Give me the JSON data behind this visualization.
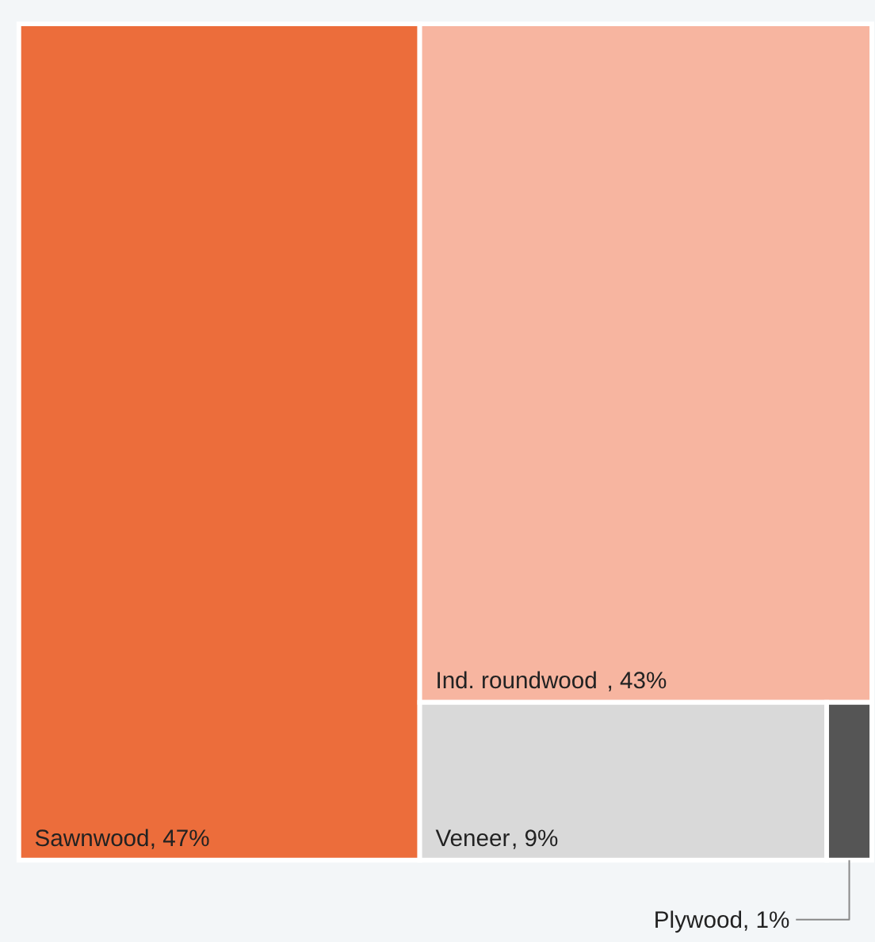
{
  "chart_data": {
    "type": "other",
    "categories": [
      "Sawnwood",
      "Ind. roundwood",
      "Veneer",
      "Plywood"
    ],
    "values": [
      47,
      43,
      9,
      1
    ],
    "value_labels": [
      ", 47%",
      ", 43%",
      ", 9%",
      ", 1%"
    ],
    "colors": [
      "#ec6d3b",
      "#f7b5a0",
      "#d9d9d9",
      "#555555"
    ]
  }
}
